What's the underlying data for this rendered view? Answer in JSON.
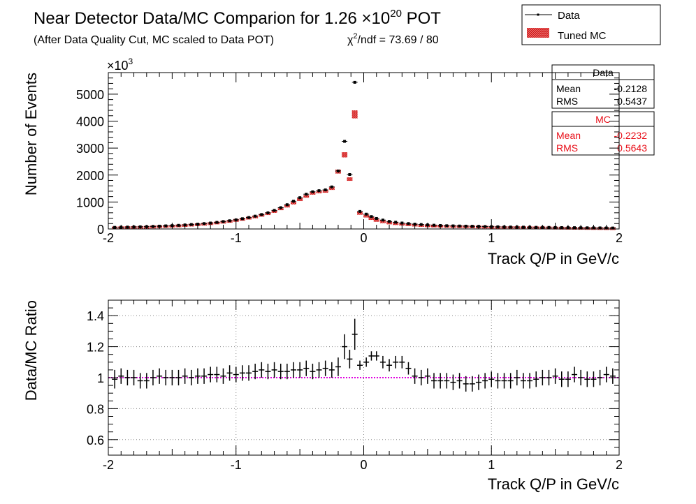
{
  "title": {
    "main": "Near Detector Data/MC Comparion for 1.26 ×10",
    "exponent": "20",
    "suffix": " POT",
    "subtitle": "(After Data Quality Cut, MC scaled to Data POT)",
    "chi2_prefix": "χ",
    "chi2_sup": "2",
    "chi2_suffix": "/ndf = 73.69 / 80"
  },
  "legend": {
    "data_label": "Data",
    "mc_label": "Tuned MC"
  },
  "stats": {
    "data": {
      "title": "Data",
      "mean_label": "Mean",
      "mean_value": "-0.2128",
      "rms_label": "RMS",
      "rms_value": "0.5437"
    },
    "mc": {
      "title": "MC",
      "mean_label": "Mean",
      "mean_value": "-0.2232",
      "rms_label": "RMS",
      "rms_value": "0.5643"
    }
  },
  "colors": {
    "data": "#000000",
    "mc": "#e8101a",
    "reference_line": "#e000e0",
    "grid": "#888888"
  },
  "chart_data": [
    {
      "type": "scatter",
      "title": "Near Detector Data/MC Comparion for 1.26 ×10^20 POT",
      "xlabel": "Track Q/P in GeV/c",
      "ylabel": "Number of Events",
      "y_multiplier": "×10",
      "y_multiplier_exp": "3",
      "xlim": [
        -2,
        2
      ],
      "ylim": [
        0,
        5800
      ],
      "xticks": [
        -2,
        -1,
        0,
        1,
        2
      ],
      "yticks": [
        0,
        1000,
        2000,
        3000,
        4000,
        5000
      ],
      "grid": false,
      "legend_position": "top-right",
      "series": [
        {
          "name": "Data",
          "style": "points",
          "x": [
            -1.95,
            -1.9,
            -1.85,
            -1.8,
            -1.75,
            -1.7,
            -1.65,
            -1.6,
            -1.55,
            -1.5,
            -1.45,
            -1.4,
            -1.35,
            -1.3,
            -1.25,
            -1.2,
            -1.15,
            -1.1,
            -1.05,
            -1.0,
            -0.95,
            -0.9,
            -0.85,
            -0.8,
            -0.75,
            -0.7,
            -0.65,
            -0.6,
            -0.55,
            -0.5,
            -0.45,
            -0.4,
            -0.35,
            -0.3,
            -0.25,
            -0.2,
            -0.15,
            -0.11,
            -0.07,
            -0.03,
            0.02,
            0.06,
            0.1,
            0.15,
            0.2,
            0.25,
            0.3,
            0.35,
            0.4,
            0.45,
            0.5,
            0.55,
            0.6,
            0.65,
            0.7,
            0.75,
            0.8,
            0.85,
            0.9,
            0.95,
            1.0,
            1.05,
            1.1,
            1.15,
            1.2,
            1.25,
            1.3,
            1.35,
            1.4,
            1.45,
            1.5,
            1.55,
            1.6,
            1.65,
            1.7,
            1.75,
            1.8,
            1.85,
            1.9,
            1.95
          ],
          "y": [
            60,
            65,
            70,
            75,
            80,
            85,
            95,
            105,
            115,
            125,
            135,
            150,
            165,
            180,
            200,
            220,
            245,
            275,
            305,
            340,
            380,
            425,
            475,
            535,
            600,
            690,
            790,
            900,
            1030,
            1160,
            1290,
            1380,
            1420,
            1450,
            1560,
            2150,
            3250,
            2020,
            5440,
            650,
            550,
            460,
            390,
            330,
            280,
            250,
            220,
            200,
            180,
            165,
            150,
            140,
            130,
            120,
            115,
            110,
            105,
            100,
            95,
            90,
            85,
            80,
            75,
            72,
            70,
            68,
            65,
            62,
            60,
            58,
            55,
            52,
            50,
            48,
            46,
            44,
            42,
            40,
            38,
            36
          ]
        },
        {
          "name": "Tuned MC",
          "style": "hatched-band",
          "x": [
            -1.95,
            -1.9,
            -1.85,
            -1.8,
            -1.75,
            -1.7,
            -1.65,
            -1.6,
            -1.55,
            -1.5,
            -1.45,
            -1.4,
            -1.35,
            -1.3,
            -1.25,
            -1.2,
            -1.15,
            -1.1,
            -1.05,
            -1.0,
            -0.95,
            -0.9,
            -0.85,
            -0.8,
            -0.75,
            -0.7,
            -0.65,
            -0.6,
            -0.55,
            -0.5,
            -0.45,
            -0.4,
            -0.35,
            -0.3,
            -0.25,
            -0.2,
            -0.15,
            -0.11,
            -0.07,
            -0.03,
            0.02,
            0.06,
            0.1,
            0.15,
            0.2,
            0.25,
            0.3,
            0.35,
            0.4,
            0.45,
            0.5,
            0.55,
            0.6,
            0.65,
            0.7,
            0.75,
            0.8,
            0.85,
            0.9,
            0.95,
            1.0,
            1.05,
            1.1,
            1.15,
            1.2,
            1.25,
            1.3,
            1.35,
            1.4,
            1.45,
            1.5,
            1.55,
            1.6,
            1.65,
            1.7,
            1.75,
            1.8,
            1.85,
            1.9,
            1.95
          ],
          "y": [
            60,
            65,
            70,
            75,
            80,
            85,
            95,
            105,
            115,
            125,
            135,
            150,
            165,
            180,
            200,
            220,
            245,
            275,
            305,
            340,
            380,
            425,
            470,
            530,
            590,
            670,
            770,
            870,
            980,
            1100,
            1220,
            1330,
            1380,
            1400,
            1500,
            2130,
            2750,
            1850,
            4250,
            600,
            500,
            410,
            340,
            290,
            245,
            220,
            200,
            180,
            165,
            150,
            140,
            130,
            125,
            118,
            112,
            108,
            104,
            100,
            96,
            92,
            86,
            80,
            75,
            72,
            70,
            68,
            65,
            62,
            60,
            58,
            55,
            52,
            50,
            48,
            46,
            44,
            42,
            40,
            38,
            36
          ]
        }
      ]
    },
    {
      "type": "scatter",
      "xlabel": "Track Q/P in GeV/c",
      "ylabel": "Data/MC Ratio",
      "xlim": [
        -2,
        2
      ],
      "ylim": [
        0.5,
        1.5
      ],
      "xticks": [
        -2,
        -1,
        0,
        1,
        2
      ],
      "yticks": [
        0.6,
        0.8,
        1,
        1.2,
        1.4
      ],
      "grid": true,
      "reference_line": 1.0,
      "series": [
        {
          "name": "Data/MC",
          "x": [
            -1.95,
            -1.9,
            -1.85,
            -1.8,
            -1.75,
            -1.7,
            -1.65,
            -1.6,
            -1.55,
            -1.5,
            -1.45,
            -1.4,
            -1.35,
            -1.3,
            -1.25,
            -1.2,
            -1.15,
            -1.1,
            -1.05,
            -1.0,
            -0.95,
            -0.9,
            -0.85,
            -0.8,
            -0.75,
            -0.7,
            -0.65,
            -0.6,
            -0.55,
            -0.5,
            -0.45,
            -0.4,
            -0.35,
            -0.3,
            -0.25,
            -0.2,
            -0.15,
            -0.11,
            -0.07,
            -0.03,
            0.02,
            0.06,
            0.1,
            0.15,
            0.2,
            0.25,
            0.3,
            0.35,
            0.4,
            0.45,
            0.5,
            0.55,
            0.6,
            0.65,
            0.7,
            0.75,
            0.8,
            0.85,
            0.9,
            0.95,
            1.0,
            1.05,
            1.1,
            1.15,
            1.2,
            1.25,
            1.3,
            1.35,
            1.4,
            1.45,
            1.5,
            1.55,
            1.6,
            1.65,
            1.7,
            1.75,
            1.8,
            1.85,
            1.9,
            1.95
          ],
          "y": [
            0.99,
            1.01,
            1.0,
            1.0,
            0.98,
            0.98,
            1.0,
            1.01,
            1.0,
            1.0,
            1.0,
            1.01,
            1.0,
            1.01,
            1.01,
            1.02,
            1.02,
            1.01,
            1.03,
            1.02,
            1.03,
            1.03,
            1.04,
            1.05,
            1.04,
            1.05,
            1.04,
            1.04,
            1.05,
            1.05,
            1.06,
            1.04,
            1.05,
            1.06,
            1.05,
            1.07,
            1.2,
            1.12,
            1.28,
            1.08,
            1.1,
            1.14,
            1.14,
            1.1,
            1.08,
            1.1,
            1.1,
            1.06,
            1.01,
            1.0,
            1.01,
            0.98,
            0.98,
            0.98,
            0.97,
            0.98,
            0.96,
            0.96,
            0.97,
            0.98,
            0.99,
            0.98,
            0.98,
            0.98,
            1.0,
            0.98,
            0.98,
            0.99,
            1.0,
            1.0,
            1.01,
            0.99,
            0.99,
            1.02,
            1.0,
            0.99,
            0.99,
            1.0,
            1.02,
            1.01
          ],
          "err": [
            0.06,
            0.05,
            0.05,
            0.05,
            0.05,
            0.05,
            0.05,
            0.05,
            0.05,
            0.05,
            0.05,
            0.05,
            0.05,
            0.05,
            0.05,
            0.05,
            0.05,
            0.05,
            0.05,
            0.05,
            0.05,
            0.05,
            0.05,
            0.05,
            0.05,
            0.05,
            0.05,
            0.05,
            0.05,
            0.05,
            0.05,
            0.05,
            0.05,
            0.05,
            0.05,
            0.06,
            0.08,
            0.06,
            0.1,
            0.03,
            0.03,
            0.03,
            0.03,
            0.04,
            0.04,
            0.04,
            0.04,
            0.04,
            0.05,
            0.05,
            0.05,
            0.05,
            0.05,
            0.05,
            0.05,
            0.05,
            0.05,
            0.05,
            0.05,
            0.05,
            0.05,
            0.05,
            0.05,
            0.05,
            0.05,
            0.05,
            0.05,
            0.05,
            0.05,
            0.05,
            0.05,
            0.05,
            0.05,
            0.05,
            0.05,
            0.05,
            0.05,
            0.05,
            0.05,
            0.05
          ]
        }
      ]
    }
  ]
}
